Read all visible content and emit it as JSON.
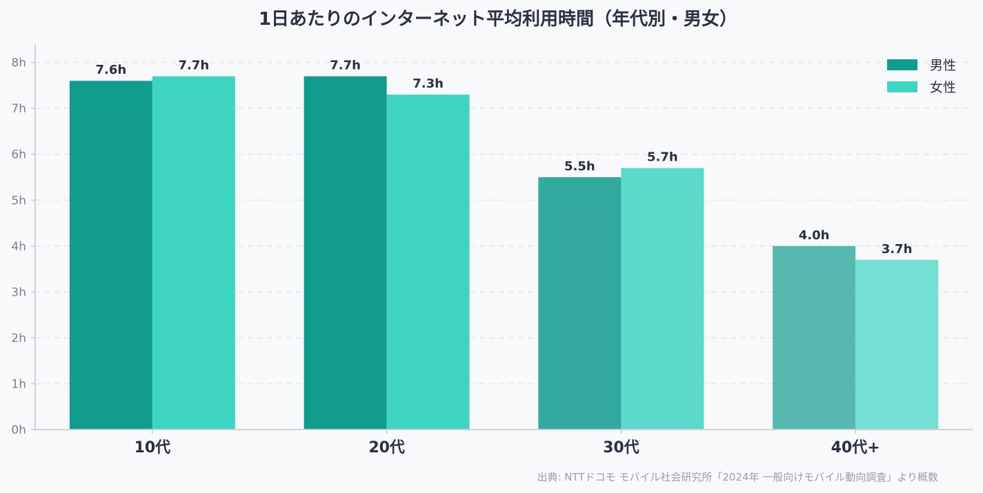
{
  "chart_data": {
    "type": "bar",
    "title": "1日あたりのインターネット平均利用時間（年代別・男女）",
    "categories": [
      "10代",
      "20代",
      "30代",
      "40代+"
    ],
    "series": [
      {
        "name": "男性",
        "values": [
          7.6,
          7.7,
          5.5,
          4.0
        ],
        "labels": [
          "7.6h",
          "7.7h",
          "5.5h",
          "4.0h"
        ],
        "color": "#119c8e",
        "opacity": [
          1.0,
          1.0,
          0.85,
          0.7
        ]
      },
      {
        "name": "女性",
        "values": [
          7.7,
          7.3,
          5.7,
          3.7
        ],
        "labels": [
          "7.7h",
          "7.3h",
          "5.7h",
          "3.7h"
        ],
        "color": "#3fd4c2",
        "opacity": [
          1.0,
          1.0,
          0.85,
          0.7
        ]
      }
    ],
    "yticks": [
      "0h",
      "1h",
      "2h",
      "3h",
      "4h",
      "5h",
      "6h",
      "7h",
      "8h"
    ],
    "ylim": [
      0,
      8.4
    ],
    "grid": true,
    "legend_position": "top-right",
    "source": "出典: NTTドコモ モバイル社会研究所「2024年 一般向けモバイル動向調査」より概数"
  }
}
